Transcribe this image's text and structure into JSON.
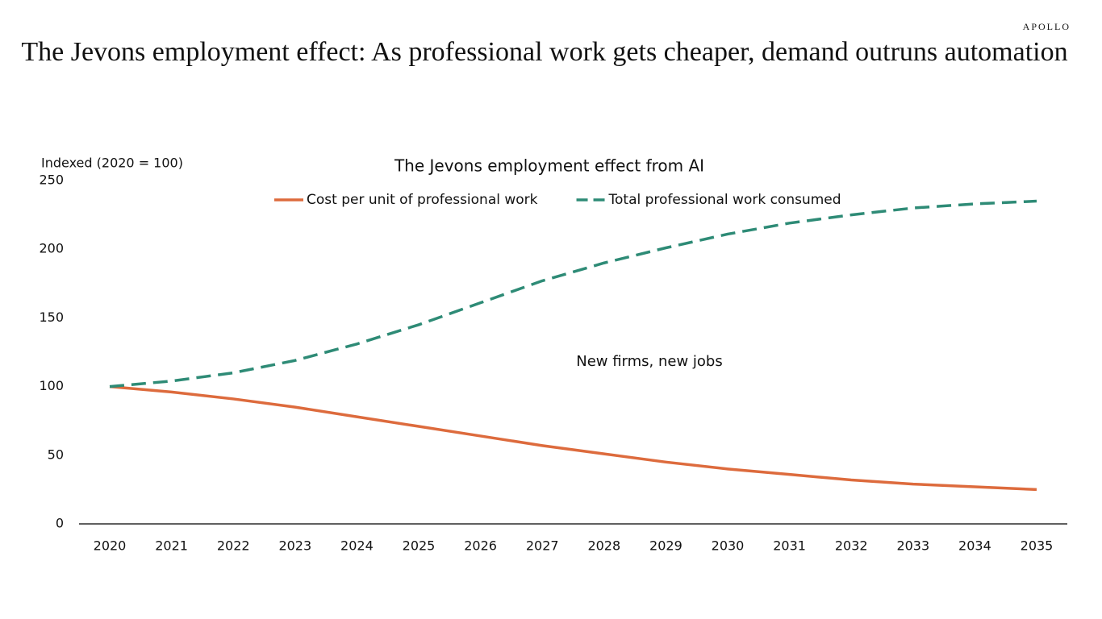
{
  "brand": "APOLLO",
  "chart_data": {
    "type": "line",
    "title": "The Jevons employment effect: As professional work gets cheaper, demand outruns automation",
    "subtitle": "The Jevons employment effect from AI",
    "y_label": "Indexed (2020 = 100)",
    "annotation": "New firms, new jobs",
    "categories": [
      "2020",
      "2021",
      "2022",
      "2023",
      "2024",
      "2025",
      "2026",
      "2027",
      "2028",
      "2029",
      "2030",
      "2031",
      "2032",
      "2033",
      "2034",
      "2035"
    ],
    "series": [
      {
        "name": "Cost per unit of professional work",
        "color": "#dd6b3d",
        "style": "solid",
        "values": [
          100,
          96,
          91,
          85,
          78,
          71,
          64,
          57,
          51,
          45,
          40,
          36,
          32,
          29,
          27,
          25
        ]
      },
      {
        "name": "Total professional work consumed",
        "color": "#2e8b76",
        "style": "dashed",
        "values": [
          100,
          104,
          110,
          119,
          131,
          145,
          161,
          177,
          190,
          201,
          211,
          219,
          225,
          230,
          233,
          235
        ]
      }
    ],
    "ylim": [
      0,
      250
    ],
    "yticks": [
      0,
      50,
      100,
      150,
      200,
      250
    ],
    "grid": false
  }
}
